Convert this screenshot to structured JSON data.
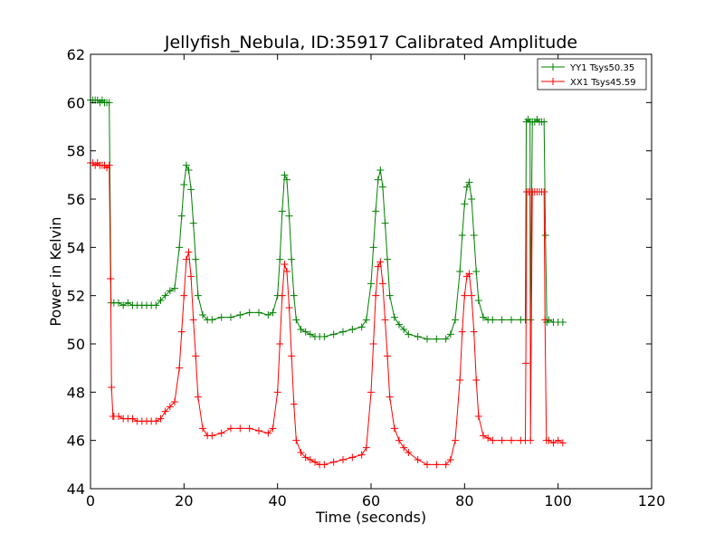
{
  "chart_data": {
    "type": "line",
    "title": "Jellyfish_Nebula, ID:35917 Calibrated Amplitude",
    "xlabel": "Time (seconds)",
    "ylabel": "Power in Kelvin",
    "xlim": [
      0,
      120
    ],
    "ylim": [
      44,
      62
    ],
    "xticks": [
      0,
      20,
      40,
      60,
      80,
      100,
      120
    ],
    "yticks": [
      44,
      46,
      48,
      50,
      52,
      54,
      56,
      58,
      60,
      62
    ],
    "grid": false,
    "legend_position": "top-right",
    "marker": "+",
    "series": [
      {
        "name": "YY1 Tsys50.35",
        "color": "#008000",
        "points": [
          [
            0.0,
            60.1
          ],
          [
            0.5,
            60.1
          ],
          [
            1.0,
            60.1
          ],
          [
            1.5,
            60.1
          ],
          [
            2.0,
            60.0
          ],
          [
            2.5,
            60.1
          ],
          [
            3.0,
            60.0
          ],
          [
            3.5,
            60.0
          ],
          [
            4.0,
            60.0
          ],
          [
            4.4,
            51.7
          ],
          [
            5.0,
            51.7
          ],
          [
            6.0,
            51.7
          ],
          [
            7.0,
            51.6
          ],
          [
            8.0,
            51.7
          ],
          [
            9.0,
            51.6
          ],
          [
            10.0,
            51.6
          ],
          [
            11.0,
            51.6
          ],
          [
            12.0,
            51.6
          ],
          [
            13.0,
            51.6
          ],
          [
            14.0,
            51.6
          ],
          [
            15.0,
            51.8
          ],
          [
            16.0,
            52.0
          ],
          [
            17.0,
            52.2
          ],
          [
            18.0,
            52.3
          ],
          [
            19.0,
            54.0
          ],
          [
            19.5,
            55.3
          ],
          [
            20.0,
            56.6
          ],
          [
            20.5,
            57.4
          ],
          [
            21.0,
            57.2
          ],
          [
            21.5,
            56.4
          ],
          [
            22.0,
            55.0
          ],
          [
            22.5,
            53.5
          ],
          [
            23.0,
            52.0
          ],
          [
            24.0,
            51.2
          ],
          [
            25.0,
            51.0
          ],
          [
            26.0,
            51.0
          ],
          [
            28.0,
            51.1
          ],
          [
            30.0,
            51.1
          ],
          [
            32.0,
            51.2
          ],
          [
            34.0,
            51.3
          ],
          [
            36.0,
            51.3
          ],
          [
            38.0,
            51.2
          ],
          [
            39.0,
            51.3
          ],
          [
            40.0,
            52.0
          ],
          [
            40.5,
            53.5
          ],
          [
            41.0,
            55.5
          ],
          [
            41.5,
            57.0
          ],
          [
            42.0,
            56.8
          ],
          [
            42.5,
            55.3
          ],
          [
            43.0,
            53.5
          ],
          [
            43.5,
            52.0
          ],
          [
            44.0,
            51.0
          ],
          [
            45.0,
            50.6
          ],
          [
            46.0,
            50.5
          ],
          [
            47.0,
            50.4
          ],
          [
            48.0,
            50.3
          ],
          [
            49.0,
            50.3
          ],
          [
            50.0,
            50.3
          ],
          [
            52.0,
            50.4
          ],
          [
            54.0,
            50.5
          ],
          [
            56.0,
            50.6
          ],
          [
            58.0,
            50.7
          ],
          [
            59.0,
            51.0
          ],
          [
            60.0,
            52.5
          ],
          [
            60.5,
            54.0
          ],
          [
            61.0,
            55.5
          ],
          [
            61.5,
            56.8
          ],
          [
            62.0,
            57.2
          ],
          [
            62.5,
            56.5
          ],
          [
            63.0,
            55.0
          ],
          [
            63.5,
            53.5
          ],
          [
            64.0,
            52.0
          ],
          [
            65.0,
            51.1
          ],
          [
            66.0,
            50.8
          ],
          [
            67.0,
            50.6
          ],
          [
            68.0,
            50.4
          ],
          [
            70.0,
            50.3
          ],
          [
            72.0,
            50.2
          ],
          [
            74.0,
            50.2
          ],
          [
            76.0,
            50.2
          ],
          [
            77.0,
            50.4
          ],
          [
            78.0,
            51.0
          ],
          [
            79.0,
            53.0
          ],
          [
            79.5,
            54.5
          ],
          [
            80.0,
            55.8
          ],
          [
            80.5,
            56.5
          ],
          [
            81.0,
            56.7
          ],
          [
            81.5,
            56.0
          ],
          [
            82.0,
            54.5
          ],
          [
            82.5,
            53.0
          ],
          [
            83.0,
            51.8
          ],
          [
            84.0,
            51.1
          ],
          [
            85.0,
            51.0
          ],
          [
            86.0,
            51.0
          ],
          [
            88.0,
            51.0
          ],
          [
            90.0,
            51.0
          ],
          [
            92.0,
            51.0
          ],
          [
            93.0,
            51.0
          ],
          [
            93.2,
            59.2
          ],
          [
            93.6,
            59.3
          ],
          [
            94.0,
            59.2
          ],
          [
            94.1,
            51.0
          ],
          [
            94.5,
            59.2
          ],
          [
            95.0,
            59.2
          ],
          [
            95.5,
            59.3
          ],
          [
            96.0,
            59.2
          ],
          [
            96.5,
            59.2
          ],
          [
            97.0,
            59.2
          ],
          [
            97.3,
            54.5
          ],
          [
            97.6,
            50.9
          ],
          [
            98.0,
            51.0
          ],
          [
            99.0,
            50.9
          ],
          [
            100.0,
            50.9
          ],
          [
            101.0,
            50.9
          ]
        ]
      },
      {
        "name": "XX1 Tsys45.59",
        "color": "#ff0000",
        "points": [
          [
            0.0,
            57.5
          ],
          [
            0.5,
            57.5
          ],
          [
            1.0,
            57.4
          ],
          [
            1.5,
            57.5
          ],
          [
            2.0,
            57.4
          ],
          [
            2.5,
            57.4
          ],
          [
            3.0,
            57.4
          ],
          [
            3.5,
            57.3
          ],
          [
            4.0,
            57.4
          ],
          [
            4.3,
            52.7
          ],
          [
            4.5,
            48.2
          ],
          [
            4.8,
            47.0
          ],
          [
            5.0,
            47.0
          ],
          [
            6.0,
            47.0
          ],
          [
            7.0,
            46.9
          ],
          [
            8.0,
            46.9
          ],
          [
            9.0,
            46.9
          ],
          [
            10.0,
            46.8
          ],
          [
            11.0,
            46.8
          ],
          [
            12.0,
            46.8
          ],
          [
            13.0,
            46.8
          ],
          [
            14.0,
            46.8
          ],
          [
            15.0,
            46.9
          ],
          [
            16.0,
            47.2
          ],
          [
            17.0,
            47.4
          ],
          [
            18.0,
            47.6
          ],
          [
            19.0,
            49.0
          ],
          [
            19.5,
            50.5
          ],
          [
            20.0,
            52.0
          ],
          [
            20.5,
            53.5
          ],
          [
            21.0,
            53.8
          ],
          [
            21.5,
            52.8
          ],
          [
            22.0,
            51.0
          ],
          [
            22.5,
            49.5
          ],
          [
            23.0,
            47.8
          ],
          [
            24.0,
            46.5
          ],
          [
            25.0,
            46.2
          ],
          [
            26.0,
            46.2
          ],
          [
            28.0,
            46.3
          ],
          [
            30.0,
            46.5
          ],
          [
            32.0,
            46.5
          ],
          [
            34.0,
            46.5
          ],
          [
            36.0,
            46.4
          ],
          [
            38.0,
            46.3
          ],
          [
            39.0,
            46.5
          ],
          [
            40.0,
            48.0
          ],
          [
            40.5,
            50.0
          ],
          [
            41.0,
            52.0
          ],
          [
            41.5,
            53.3
          ],
          [
            42.0,
            53.0
          ],
          [
            42.5,
            51.5
          ],
          [
            43.0,
            49.5
          ],
          [
            43.5,
            47.5
          ],
          [
            44.0,
            46.0
          ],
          [
            45.0,
            45.5
          ],
          [
            46.0,
            45.3
          ],
          [
            47.0,
            45.2
          ],
          [
            48.0,
            45.1
          ],
          [
            49.0,
            45.0
          ],
          [
            50.0,
            45.0
          ],
          [
            52.0,
            45.1
          ],
          [
            54.0,
            45.2
          ],
          [
            56.0,
            45.3
          ],
          [
            58.0,
            45.4
          ],
          [
            59.0,
            45.7
          ],
          [
            60.0,
            48.0
          ],
          [
            60.5,
            50.0
          ],
          [
            61.0,
            52.0
          ],
          [
            61.5,
            53.2
          ],
          [
            62.0,
            53.4
          ],
          [
            62.5,
            52.5
          ],
          [
            63.0,
            51.0
          ],
          [
            63.5,
            49.5
          ],
          [
            64.0,
            47.8
          ],
          [
            65.0,
            46.5
          ],
          [
            66.0,
            46.0
          ],
          [
            67.0,
            45.7
          ],
          [
            68.0,
            45.5
          ],
          [
            70.0,
            45.2
          ],
          [
            72.0,
            45.0
          ],
          [
            74.0,
            45.0
          ],
          [
            76.0,
            45.0
          ],
          [
            77.0,
            45.2
          ],
          [
            78.0,
            46.0
          ],
          [
            79.0,
            48.5
          ],
          [
            79.5,
            50.5
          ],
          [
            80.0,
            52.0
          ],
          [
            80.5,
            52.8
          ],
          [
            81.0,
            52.9
          ],
          [
            81.5,
            52.0
          ],
          [
            82.0,
            50.5
          ],
          [
            82.5,
            48.5
          ],
          [
            83.0,
            47.0
          ],
          [
            84.0,
            46.2
          ],
          [
            85.0,
            46.1
          ],
          [
            86.0,
            46.0
          ],
          [
            88.0,
            46.0
          ],
          [
            90.0,
            46.0
          ],
          [
            92.0,
            46.0
          ],
          [
            93.0,
            46.0
          ],
          [
            93.1,
            49.2
          ],
          [
            93.3,
            56.3
          ],
          [
            93.7,
            56.3
          ],
          [
            94.0,
            56.3
          ],
          [
            94.1,
            46.0
          ],
          [
            94.5,
            56.3
          ],
          [
            95.0,
            56.3
          ],
          [
            95.5,
            56.3
          ],
          [
            96.0,
            56.3
          ],
          [
            96.5,
            56.3
          ],
          [
            97.0,
            56.3
          ],
          [
            97.2,
            51.0
          ],
          [
            97.5,
            46.0
          ],
          [
            98.0,
            46.0
          ],
          [
            99.0,
            45.9
          ],
          [
            100.0,
            46.0
          ],
          [
            101.0,
            45.9
          ]
        ]
      }
    ]
  }
}
